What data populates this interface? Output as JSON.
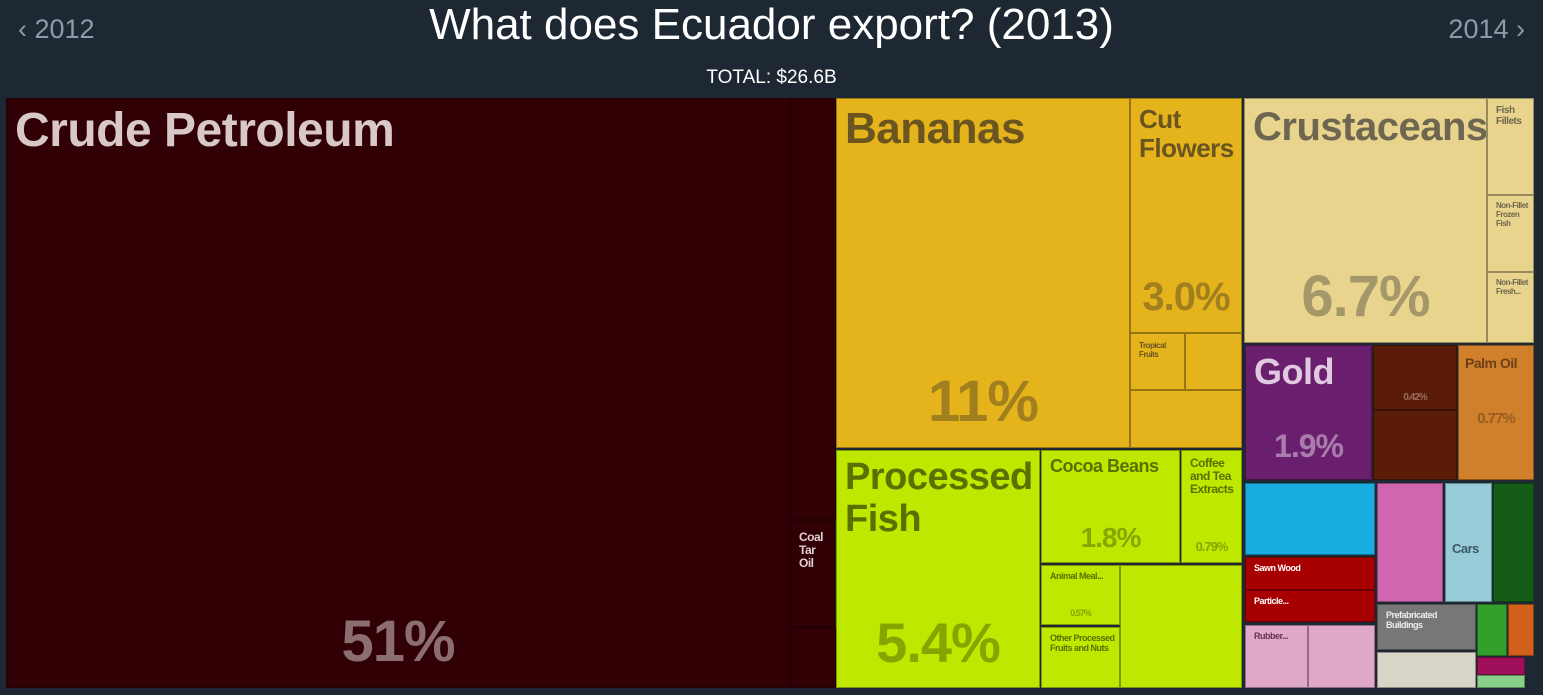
{
  "chart_data": {
    "type": "treemap",
    "title": "What does Ecuador export? (2013)",
    "subtitle": "TOTAL: $26.6B",
    "nav_prev": "2012",
    "nav_next": "2014",
    "categories": [
      "Crude Petroleum",
      "Bananas",
      "Cut Flowers",
      "Tropical Fruits",
      "Crustaceans",
      "Fish Fillets",
      "Non-Fillet Frozen Fish",
      "Non-Fillet Fresh...",
      "Gold",
      "Palm Oil",
      null,
      "Processed Fish",
      "Cocoa Beans",
      "Coffee and Tea Extracts",
      "Animal Meal...",
      "Other Processed Fruits and Nuts",
      "Coal Tar Oil",
      "Sawn Wood",
      "Particle...",
      "Rubber...",
      "Cars",
      "Prefabricated Buildings"
    ],
    "values": [
      51,
      11,
      3.0,
      0.35,
      6.7,
      0.5,
      0.4,
      0.37,
      1.9,
      0.77,
      0.42,
      5.4,
      1.8,
      0.79,
      0.57,
      0.53,
      0.53,
      0.48,
      0.46,
      0.44,
      0.62,
      0.5
    ],
    "value_labels": [
      "51%",
      "11%",
      "3.0%",
      null,
      "6.7%",
      null,
      null,
      null,
      "1.9%",
      "0.77%",
      "0.42%",
      "5.4%",
      "1.8%",
      "0.79%",
      "0.57%",
      null,
      null,
      null,
      null,
      null,
      null,
      null
    ],
    "colors": [
      "#300005",
      "#e5b31c",
      "#e5b31c",
      "#e5b31c",
      "#e8d48c",
      "#e8d48c",
      "#e8d48c",
      "#e8d48c",
      "#6a1f6e",
      "#d07f2a",
      "#5a1c08",
      "#bfe800",
      "#bfe800",
      "#bfe800",
      "#bfe800",
      "#bfe800",
      "#300005",
      "#a80000",
      "#a80000",
      "#e0a8c8",
      "#98ccd8",
      "#777777"
    ]
  }
}
